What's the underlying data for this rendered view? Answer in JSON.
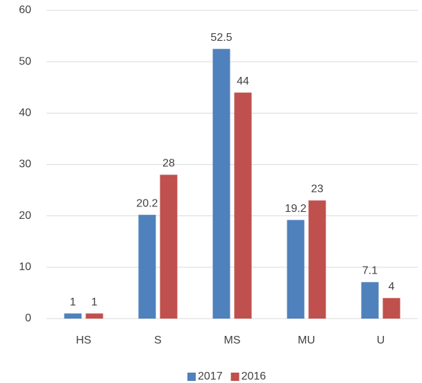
{
  "chart_data": {
    "type": "bar",
    "categories": [
      "HS",
      "S",
      "MS",
      "MU",
      "U"
    ],
    "series": [
      {
        "name": "2017",
        "color": "#4f81bd",
        "values": [
          1,
          20.2,
          52.5,
          19.2,
          7.1
        ]
      },
      {
        "name": "2016",
        "color": "#c0504d",
        "values": [
          1,
          28,
          44,
          23,
          4
        ]
      }
    ],
    "ylim": [
      0,
      60
    ],
    "yticks": [
      0,
      10,
      20,
      30,
      40,
      50,
      60
    ],
    "grid": true,
    "legend": "bottom"
  }
}
